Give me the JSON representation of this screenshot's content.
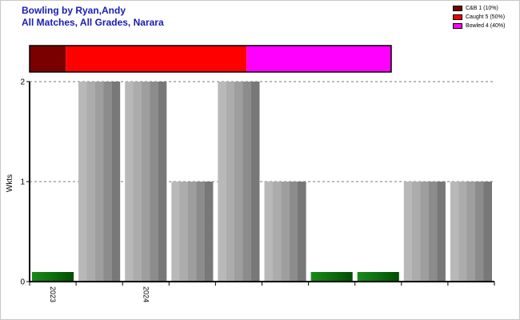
{
  "header": {
    "title_line1": "Bowling by Ryan,Andy",
    "title_line2": "All Matches, All Grades, Narara"
  },
  "legend": [
    {
      "label": "C&B 1 (10%)",
      "color": "#7a0000"
    },
    {
      "label": "Caught 5 (50%)",
      "color": "#ff0000"
    },
    {
      "label": "Bowled 4 (40%)",
      "color": "#ff00ff"
    }
  ],
  "chart_data": {
    "type": "bar",
    "ylabel": "Wkts",
    "xlabel": "",
    "ylim": [
      0,
      2
    ],
    "yticks": [
      0,
      1,
      2
    ],
    "grid": true,
    "legend_position": "top-right",
    "values": [
      0,
      2,
      2,
      1,
      2,
      1,
      0,
      0,
      1,
      1
    ],
    "x_tick_labels": [
      "2023",
      "",
      "2024",
      "",
      "",
      "",
      "",
      "",
      "",
      ""
    ],
    "zero_marker_color": "#007000",
    "bar_color": "#a0a0a0",
    "dismissal_breakdown": [
      {
        "name": "C&B",
        "count": 1,
        "percent": 10,
        "color": "#7a0000"
      },
      {
        "name": "Caught",
        "count": 5,
        "percent": 50,
        "color": "#ff0000"
      },
      {
        "name": "Bowled",
        "count": 4,
        "percent": 40,
        "color": "#ff00ff"
      }
    ]
  }
}
